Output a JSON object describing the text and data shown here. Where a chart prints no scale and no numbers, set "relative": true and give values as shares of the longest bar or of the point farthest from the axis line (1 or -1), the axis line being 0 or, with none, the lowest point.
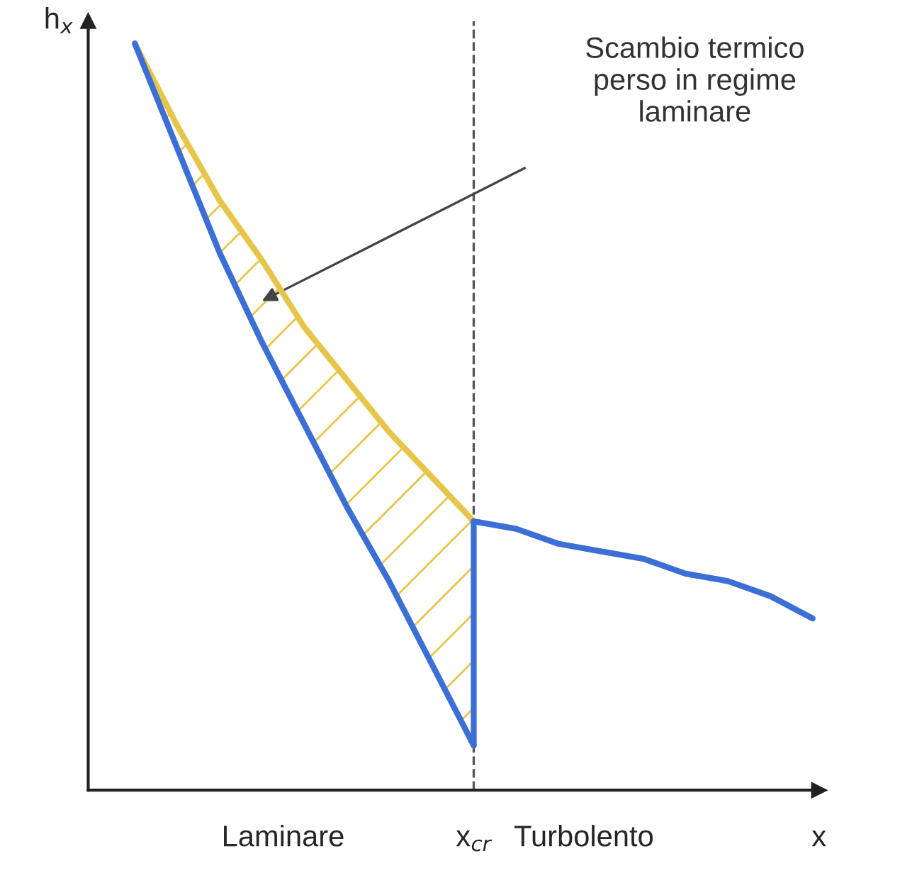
{
  "chart_data": {
    "type": "line",
    "relative": true,
    "xlabel": "x",
    "ylabel": "h$_{x}$",
    "marker": "none",
    "line_style": "solid",
    "categories": [
      null,
      null,
      null,
      null,
      null,
      null,
      null,
      null,
      null,
      null,
      null,
      null,
      null,
      null,
      null,
      null,
      null
    ],
    "series": [
      {
        "color": "#3b6fd6",
        "values": [
          1.0,
          0.86,
          0.72,
          0.6,
          0.49,
          0.38,
          0.28,
          0.17,
          0.06,
          null,
          null,
          null,
          null,
          null,
          null,
          null,
          null
        ]
      },
      {
        "color": "#3b6fd6",
        "values": [
          null,
          null,
          null,
          null,
          null,
          null,
          null,
          null,
          0.36,
          0.35,
          0.33,
          0.32,
          0.31,
          0.29,
          0.28,
          0.26,
          0.23
        ]
      },
      {
        "color": "#e6c54a",
        "values": [
          1.0,
          0.89,
          0.79,
          0.71,
          0.62,
          0.55,
          0.48,
          0.42,
          0.36,
          null,
          null,
          null,
          null,
          null,
          null,
          null,
          null
        ],
        "lower": [
          1.0,
          0.86,
          0.72,
          0.6,
          0.49,
          0.38,
          0.28,
          0.17,
          0.06,
          null,
          null,
          null,
          null,
          null,
          null,
          null,
          null
        ],
        "upper": [
          1.0,
          0.89,
          0.79,
          0.71,
          0.62,
          0.55,
          0.48,
          0.42,
          0.36,
          null,
          null,
          null,
          null,
          null,
          null,
          null,
          null
        ]
      }
    ],
    "annotations": [
      "Scambio termico\nperso in regime\nlaminare",
      "Laminare",
      "Turbolento",
      "x$_{cr}$"
    ]
  }
}
